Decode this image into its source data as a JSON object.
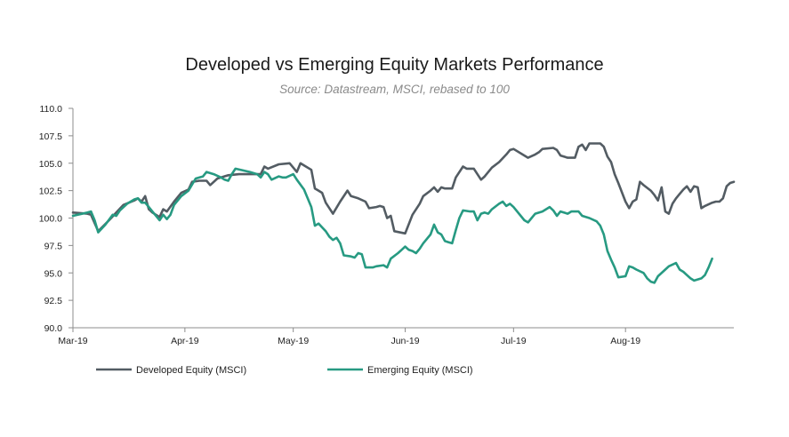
{
  "chart_data": {
    "type": "line",
    "title": "Developed vs Emerging Equity Markets Performance",
    "subtitle": "Source: Datastream, MSCI, rebased to 100",
    "xlabel": "",
    "ylabel": "",
    "ylim": [
      90.0,
      110.0
    ],
    "y_ticks": [
      "90.0",
      "92.5",
      "95.0",
      "97.5",
      "100.0",
      "102.5",
      "105.0",
      "107.5",
      "110.0"
    ],
    "x_ticks": [
      "Mar-19",
      "Apr-19",
      "May-19",
      "Jun-19",
      "Jul-19",
      "Aug-19"
    ],
    "x_range_days": [
      0,
      183
    ],
    "grid": false,
    "legend_position": "bottom",
    "series": [
      {
        "name": "Developed Equity (MSCI)",
        "color": "#535c63",
        "points": [
          [
            0,
            100.5
          ],
          [
            4,
            100.4
          ],
          [
            5,
            100.3
          ],
          [
            7,
            98.8
          ],
          [
            10,
            99.8
          ],
          [
            12,
            100.5
          ],
          [
            14,
            101.2
          ],
          [
            17,
            101.6
          ],
          [
            18,
            101.8
          ],
          [
            19,
            101.5
          ],
          [
            20,
            102.0
          ],
          [
            21,
            100.8
          ],
          [
            22,
            100.5
          ],
          [
            24,
            100.1
          ],
          [
            25,
            100.8
          ],
          [
            26,
            100.6
          ],
          [
            28,
            101.5
          ],
          [
            30,
            102.3
          ],
          [
            32,
            102.6
          ],
          [
            33,
            103.3
          ],
          [
            35,
            103.4
          ],
          [
            37,
            103.4
          ],
          [
            38,
            103.0
          ],
          [
            40,
            103.6
          ],
          [
            43,
            103.9
          ],
          [
            46,
            104.0
          ],
          [
            50,
            104.0
          ],
          [
            52,
            104.0
          ],
          [
            53,
            104.7
          ],
          [
            54,
            104.5
          ],
          [
            57,
            104.9
          ],
          [
            60,
            105.0
          ],
          [
            61,
            104.6
          ],
          [
            62,
            104.2
          ],
          [
            63,
            105.0
          ],
          [
            64,
            104.8
          ],
          [
            66,
            104.4
          ],
          [
            67,
            102.7
          ],
          [
            68,
            102.5
          ],
          [
            69,
            102.3
          ],
          [
            70,
            101.4
          ],
          [
            72,
            100.4
          ],
          [
            74,
            101.5
          ],
          [
            76,
            102.5
          ],
          [
            77,
            102.0
          ],
          [
            79,
            101.8
          ],
          [
            81,
            101.5
          ],
          [
            82,
            100.9
          ],
          [
            84,
            101.0
          ],
          [
            85,
            101.1
          ],
          [
            86,
            101.0
          ],
          [
            87,
            100.0
          ],
          [
            88,
            100.2
          ],
          [
            89,
            98.8
          ],
          [
            92,
            98.6
          ],
          [
            94,
            100.3
          ],
          [
            96,
            101.3
          ],
          [
            97,
            102.0
          ],
          [
            99,
            102.5
          ],
          [
            100,
            102.8
          ],
          [
            101,
            102.4
          ],
          [
            102,
            102.8
          ],
          [
            103,
            102.7
          ],
          [
            105,
            102.7
          ],
          [
            106,
            103.7
          ],
          [
            108,
            104.7
          ],
          [
            109,
            104.5
          ],
          [
            111,
            104.5
          ],
          [
            112,
            104.0
          ],
          [
            113,
            103.5
          ],
          [
            114,
            103.8
          ],
          [
            116,
            104.6
          ],
          [
            118,
            105.1
          ],
          [
            120,
            105.8
          ],
          [
            121,
            106.2
          ],
          [
            122,
            106.3
          ],
          [
            125,
            105.7
          ],
          [
            126,
            105.5
          ],
          [
            128,
            105.8
          ],
          [
            129,
            106.0
          ],
          [
            130,
            106.3
          ],
          [
            133,
            106.4
          ],
          [
            134,
            106.2
          ],
          [
            135,
            105.7
          ],
          [
            137,
            105.5
          ],
          [
            139,
            105.5
          ],
          [
            140,
            106.5
          ],
          [
            141,
            106.7
          ],
          [
            142,
            106.2
          ],
          [
            143,
            106.8
          ],
          [
            146,
            106.8
          ],
          [
            147,
            106.5
          ],
          [
            148,
            105.6
          ],
          [
            149,
            105.1
          ],
          [
            150,
            104.0
          ],
          [
            151,
            103.2
          ],
          [
            153,
            101.5
          ],
          [
            154,
            100.9
          ],
          [
            155,
            101.5
          ],
          [
            156,
            101.7
          ],
          [
            157,
            103.3
          ],
          [
            158,
            103.0
          ],
          [
            160,
            102.5
          ],
          [
            161,
            102.1
          ],
          [
            162,
            101.6
          ],
          [
            163,
            102.8
          ],
          [
            164,
            100.6
          ],
          [
            165,
            100.4
          ],
          [
            166,
            101.3
          ],
          [
            167,
            101.8
          ],
          [
            168,
            102.2
          ],
          [
            169,
            102.6
          ],
          [
            170,
            102.9
          ],
          [
            171,
            102.4
          ],
          [
            172,
            102.9
          ],
          [
            173,
            102.8
          ],
          [
            174,
            100.9
          ],
          [
            175,
            101.1
          ],
          [
            177,
            101.4
          ],
          [
            178,
            101.5
          ],
          [
            179,
            101.5
          ],
          [
            180,
            101.8
          ],
          [
            181,
            102.9
          ],
          [
            182,
            103.2
          ],
          [
            183,
            103.3
          ]
        ]
      },
      {
        "name": "Emerging Equity (MSCI)",
        "color": "#279a82",
        "points": [
          [
            0,
            100.2
          ],
          [
            4,
            100.5
          ],
          [
            5,
            100.6
          ],
          [
            6,
            99.8
          ],
          [
            7,
            98.7
          ],
          [
            9,
            99.4
          ],
          [
            11,
            100.3
          ],
          [
            12,
            100.2
          ],
          [
            13,
            100.7
          ],
          [
            15,
            101.3
          ],
          [
            17,
            101.7
          ],
          [
            18,
            101.8
          ],
          [
            19,
            101.4
          ],
          [
            20,
            101.4
          ],
          [
            21,
            101.0
          ],
          [
            22,
            100.6
          ],
          [
            23,
            100.2
          ],
          [
            24,
            99.8
          ],
          [
            25,
            100.3
          ],
          [
            26,
            99.9
          ],
          [
            27,
            100.3
          ],
          [
            28,
            101.2
          ],
          [
            30,
            102.0
          ],
          [
            32,
            102.5
          ],
          [
            34,
            103.6
          ],
          [
            36,
            103.8
          ],
          [
            37,
            104.2
          ],
          [
            39,
            104.0
          ],
          [
            41,
            103.7
          ],
          [
            42,
            103.5
          ],
          [
            43,
            103.4
          ],
          [
            44,
            104.0
          ],
          [
            45,
            104.5
          ],
          [
            49,
            104.2
          ],
          [
            51,
            104.0
          ],
          [
            52,
            103.7
          ],
          [
            53,
            104.2
          ],
          [
            54,
            104.0
          ],
          [
            55,
            103.5
          ],
          [
            57,
            103.8
          ],
          [
            58,
            103.7
          ],
          [
            59,
            103.7
          ],
          [
            61,
            104.0
          ],
          [
            62,
            103.5
          ],
          [
            64,
            102.6
          ],
          [
            65,
            101.8
          ],
          [
            66,
            101.0
          ],
          [
            67,
            99.3
          ],
          [
            68,
            99.5
          ],
          [
            70,
            98.8
          ],
          [
            71,
            98.3
          ],
          [
            72,
            98.0
          ],
          [
            73,
            98.2
          ],
          [
            74,
            97.7
          ],
          [
            75,
            96.6
          ],
          [
            77,
            96.5
          ],
          [
            78,
            96.4
          ],
          [
            79,
            96.8
          ],
          [
            80,
            96.7
          ],
          [
            81,
            95.5
          ],
          [
            83,
            95.5
          ],
          [
            84,
            95.6
          ],
          [
            86,
            95.7
          ],
          [
            87,
            95.5
          ],
          [
            88,
            96.3
          ],
          [
            90,
            96.8
          ],
          [
            91,
            97.1
          ],
          [
            92,
            97.4
          ],
          [
            93,
            97.1
          ],
          [
            94,
            97.0
          ],
          [
            95,
            96.8
          ],
          [
            96,
            97.2
          ],
          [
            97,
            97.7
          ],
          [
            99,
            98.5
          ],
          [
            100,
            99.4
          ],
          [
            101,
            98.7
          ],
          [
            102,
            98.5
          ],
          [
            103,
            97.9
          ],
          [
            104,
            97.8
          ],
          [
            105,
            97.7
          ],
          [
            106,
            98.9
          ],
          [
            107,
            100.0
          ],
          [
            108,
            100.7
          ],
          [
            110,
            100.6
          ],
          [
            111,
            100.6
          ],
          [
            112,
            99.8
          ],
          [
            113,
            100.4
          ],
          [
            114,
            100.5
          ],
          [
            115,
            100.4
          ],
          [
            116,
            100.8
          ],
          [
            118,
            101.3
          ],
          [
            119,
            101.5
          ],
          [
            120,
            101.1
          ],
          [
            121,
            101.3
          ],
          [
            122,
            101.0
          ],
          [
            125,
            99.8
          ],
          [
            126,
            99.6
          ],
          [
            127,
            100.0
          ],
          [
            128,
            100.4
          ],
          [
            130,
            100.6
          ],
          [
            132,
            101.0
          ],
          [
            133,
            100.7
          ],
          [
            134,
            100.2
          ],
          [
            135,
            100.6
          ],
          [
            137,
            100.4
          ],
          [
            138,
            100.6
          ],
          [
            140,
            100.6
          ],
          [
            141,
            100.2
          ],
          [
            143,
            100.0
          ],
          [
            145,
            99.7
          ],
          [
            146,
            99.3
          ],
          [
            147,
            98.5
          ],
          [
            148,
            97.0
          ],
          [
            149,
            96.2
          ],
          [
            150,
            95.5
          ],
          [
            151,
            94.6
          ],
          [
            153,
            94.7
          ],
          [
            154,
            95.6
          ],
          [
            155,
            95.5
          ],
          [
            156,
            95.3
          ],
          [
            158,
            95.0
          ],
          [
            159,
            94.5
          ],
          [
            160,
            94.2
          ],
          [
            161,
            94.1
          ],
          [
            162,
            94.7
          ],
          [
            164,
            95.3
          ],
          [
            165,
            95.6
          ],
          [
            167,
            95.9
          ],
          [
            168,
            95.3
          ],
          [
            169,
            95.1
          ],
          [
            170,
            94.8
          ],
          [
            171,
            94.5
          ],
          [
            172,
            94.3
          ],
          [
            174,
            94.5
          ],
          [
            175,
            94.8
          ],
          [
            176,
            95.5
          ],
          [
            177,
            96.3
          ]
        ]
      }
    ]
  }
}
